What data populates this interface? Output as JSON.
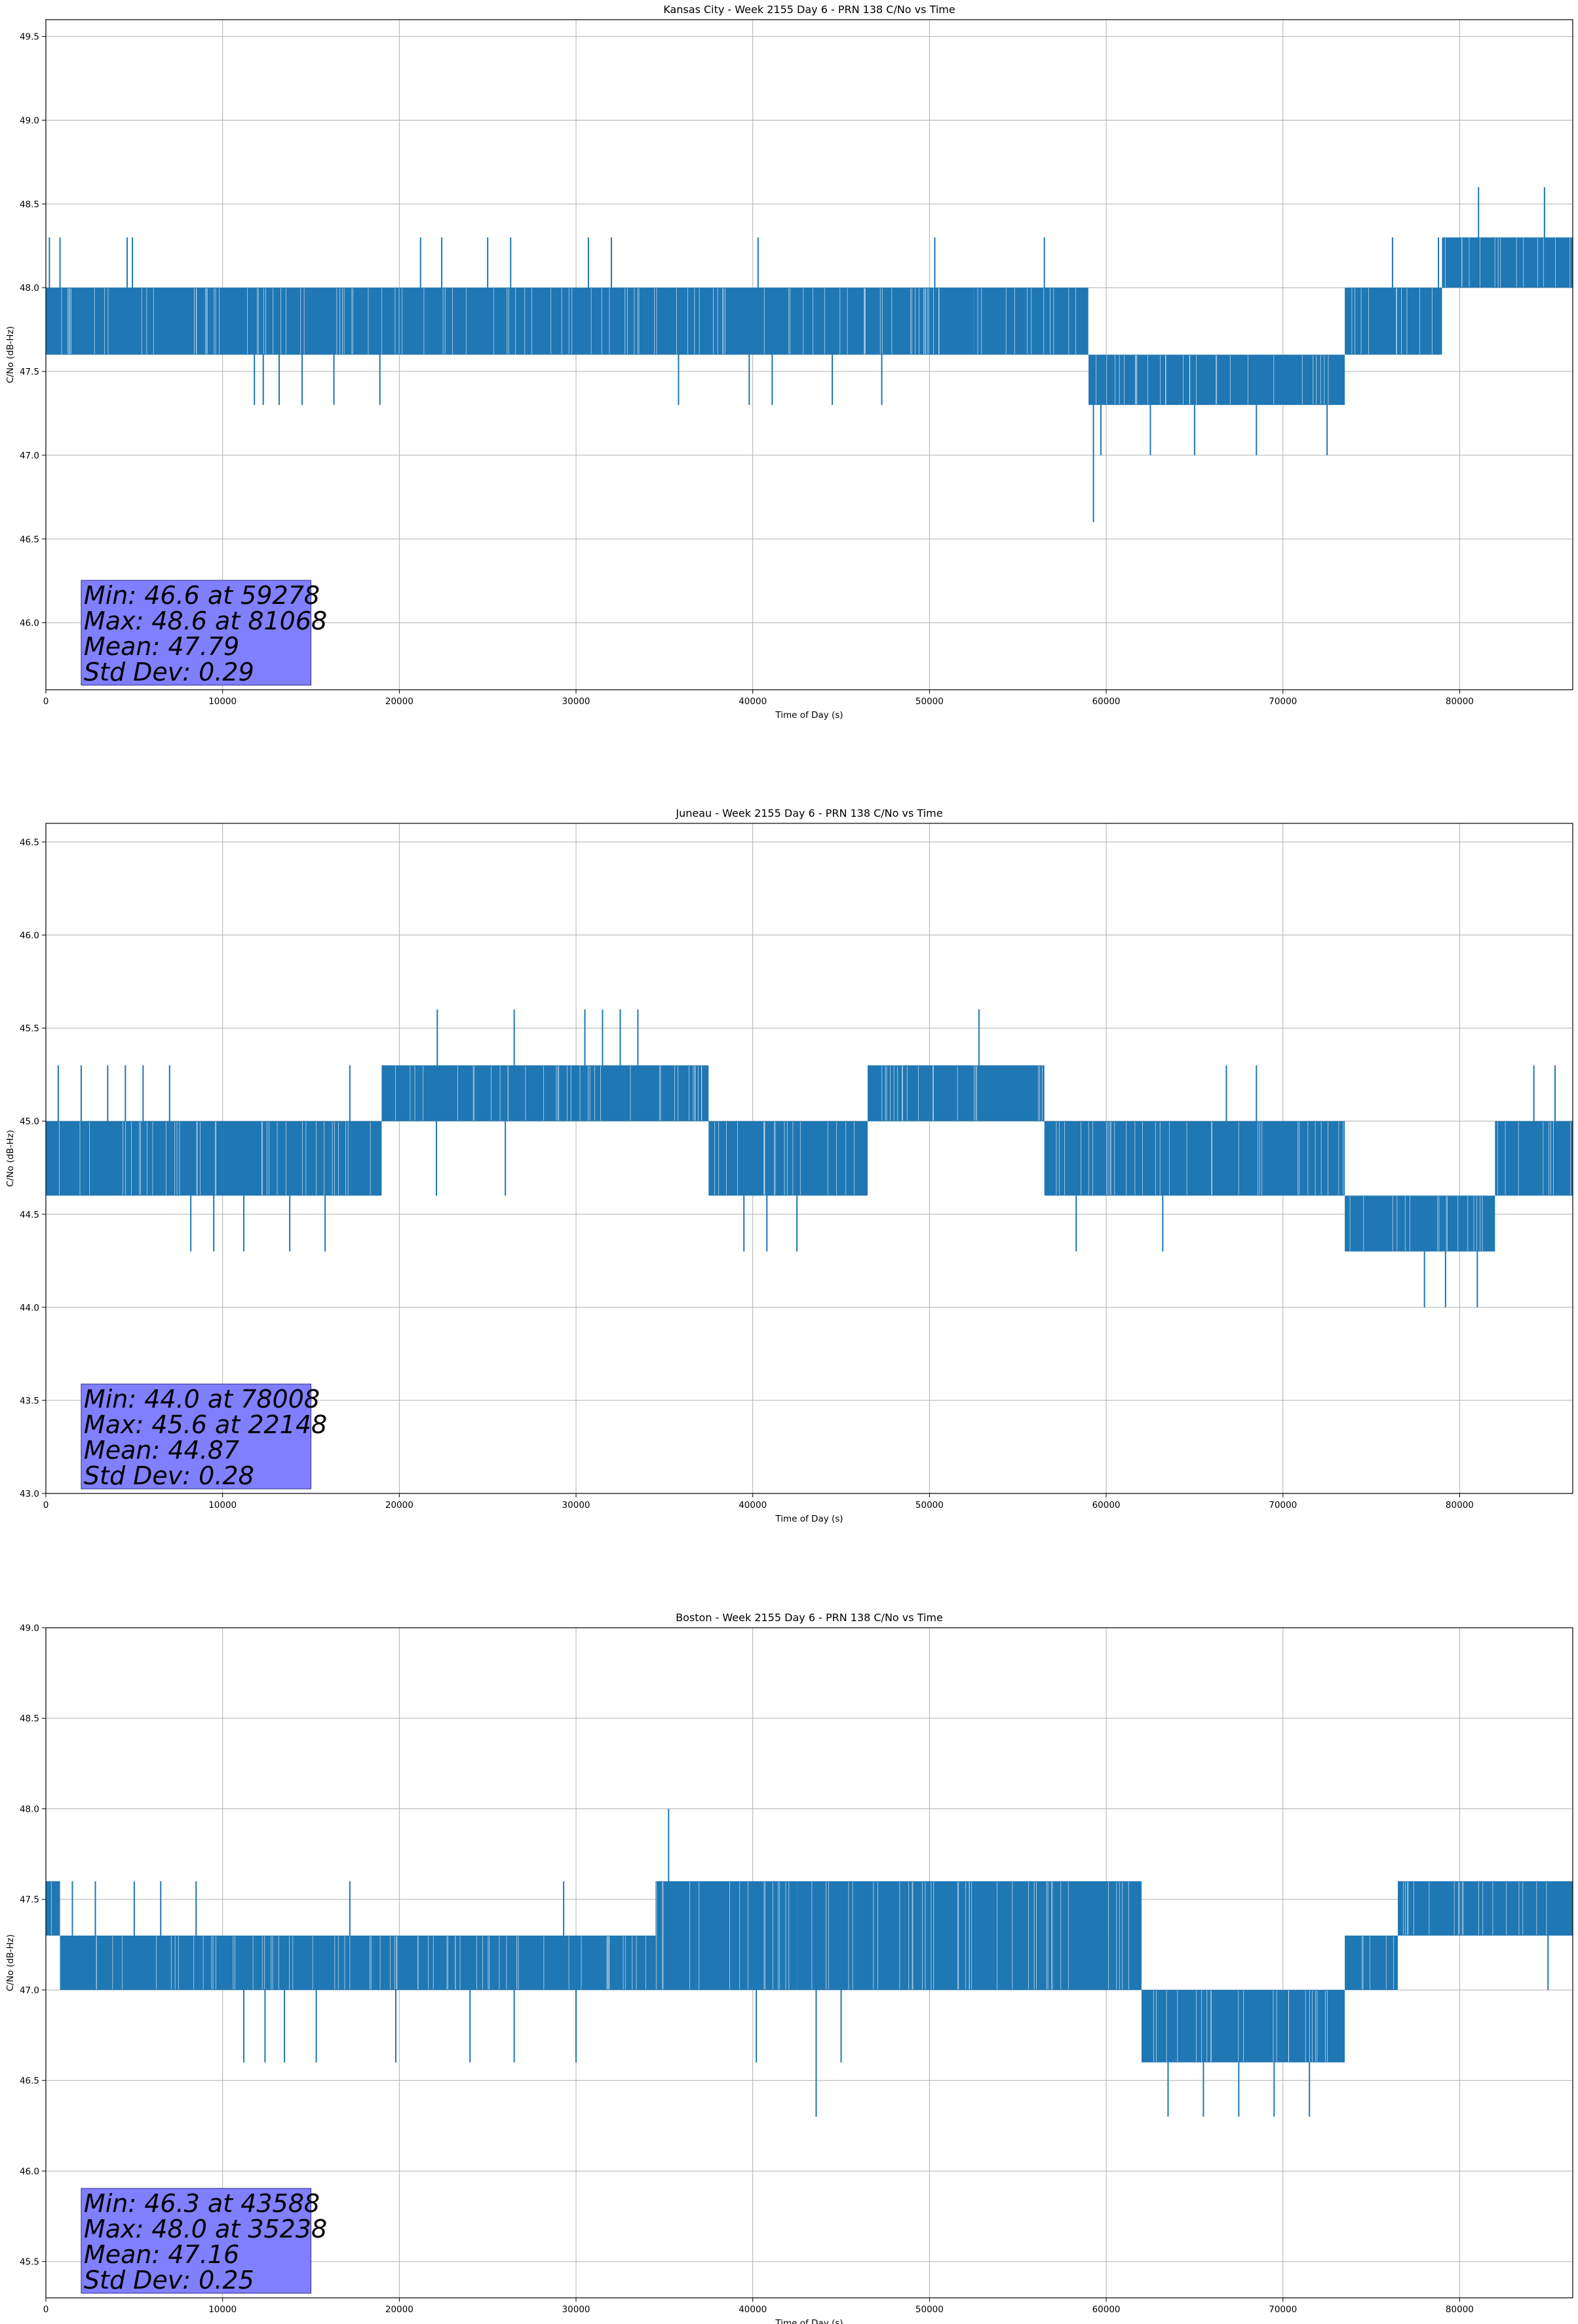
{
  "chart_data": [
    {
      "type": "line",
      "title": "Kansas City - Week 2155 Day 6 - PRN 138 C/No vs Time",
      "xlabel": "Time of Day (s)",
      "ylabel": "C/No (dB-Hz)",
      "xlim": [
        0,
        86400
      ],
      "ylim": [
        45.6,
        49.6
      ],
      "xticks": [
        0,
        10000,
        20000,
        30000,
        40000,
        50000,
        60000,
        70000,
        80000
      ],
      "yticks": [
        "46.0",
        "46.5",
        "47.0",
        "47.5",
        "48.0",
        "48.5",
        "49.0",
        "49.5"
      ],
      "grid": true,
      "color": "#1f77b4",
      "segments": [
        {
          "x": [
            0,
            52500
          ],
          "lo": 47.6,
          "hi": 48.0
        },
        {
          "x": [
            52500,
            59000
          ],
          "lo": 47.6,
          "hi": 48.0
        },
        {
          "x": [
            59000,
            73500
          ],
          "lo": 47.3,
          "hi": 47.6
        },
        {
          "x": [
            73500,
            79000
          ],
          "lo": 47.6,
          "hi": 48.0
        },
        {
          "x": [
            79000,
            86400
          ],
          "lo": 48.0,
          "hi": 48.3
        }
      ],
      "spikes": [
        {
          "x": 200,
          "y": 48.3
        },
        {
          "x": 800,
          "y": 48.3
        },
        {
          "x": 4600,
          "y": 48.3
        },
        {
          "x": 4900,
          "y": 48.3
        },
        {
          "x": 11800,
          "y": 47.3
        },
        {
          "x": 12300,
          "y": 47.3
        },
        {
          "x": 13200,
          "y": 47.3
        },
        {
          "x": 14500,
          "y": 47.3
        },
        {
          "x": 16300,
          "y": 47.3
        },
        {
          "x": 18900,
          "y": 47.3
        },
        {
          "x": 21200,
          "y": 48.3
        },
        {
          "x": 22400,
          "y": 48.3
        },
        {
          "x": 25000,
          "y": 48.3
        },
        {
          "x": 26300,
          "y": 48.3
        },
        {
          "x": 30700,
          "y": 48.3
        },
        {
          "x": 32000,
          "y": 48.3
        },
        {
          "x": 35800,
          "y": 47.3
        },
        {
          "x": 39800,
          "y": 47.3
        },
        {
          "x": 40300,
          "y": 48.3
        },
        {
          "x": 41100,
          "y": 47.3
        },
        {
          "x": 44500,
          "y": 47.3
        },
        {
          "x": 47300,
          "y": 47.3
        },
        {
          "x": 50300,
          "y": 48.3
        },
        {
          "x": 56500,
          "y": 48.3
        },
        {
          "x": 59278,
          "y": 46.6
        },
        {
          "x": 59700,
          "y": 47.0
        },
        {
          "x": 62500,
          "y": 47.0
        },
        {
          "x": 65000,
          "y": 47.0
        },
        {
          "x": 68500,
          "y": 47.0
        },
        {
          "x": 72500,
          "y": 47.0
        },
        {
          "x": 76200,
          "y": 48.3
        },
        {
          "x": 78800,
          "y": 48.3
        },
        {
          "x": 81068,
          "y": 48.6
        },
        {
          "x": 84800,
          "y": 48.6
        }
      ],
      "stats": [
        "Min: 46.6 at 59278",
        "Max: 48.6 at 81068",
        "Mean: 47.79",
        "Std Dev: 0.29"
      ]
    },
    {
      "type": "line",
      "title": "Juneau - Week 2155 Day 6 - PRN 138 C/No vs Time",
      "xlabel": "Time of Day (s)",
      "ylabel": "C/No (dB-Hz)",
      "xlim": [
        0,
        86400
      ],
      "ylim": [
        43.0,
        46.6
      ],
      "xticks": [
        0,
        10000,
        20000,
        30000,
        40000,
        50000,
        60000,
        70000,
        80000
      ],
      "yticks": [
        "43.0",
        "43.5",
        "44.0",
        "44.5",
        "45.0",
        "45.5",
        "46.0",
        "46.5"
      ],
      "grid": true,
      "color": "#1f77b4",
      "segments": [
        {
          "x": [
            0,
            19000
          ],
          "lo": 44.6,
          "hi": 45.0
        },
        {
          "x": [
            19000,
            37500
          ],
          "lo": 45.0,
          "hi": 45.3
        },
        {
          "x": [
            37500,
            46500
          ],
          "lo": 44.6,
          "hi": 45.0
        },
        {
          "x": [
            46500,
            56500
          ],
          "lo": 45.0,
          "hi": 45.3
        },
        {
          "x": [
            56500,
            73500
          ],
          "lo": 44.6,
          "hi": 45.0
        },
        {
          "x": [
            73500,
            82000
          ],
          "lo": 44.3,
          "hi": 44.6
        },
        {
          "x": [
            82000,
            86400
          ],
          "lo": 44.6,
          "hi": 45.0
        }
      ],
      "spikes": [
        {
          "x": 700,
          "y": 45.3
        },
        {
          "x": 2000,
          "y": 45.3
        },
        {
          "x": 3500,
          "y": 45.3
        },
        {
          "x": 4500,
          "y": 45.3
        },
        {
          "x": 5500,
          "y": 45.3
        },
        {
          "x": 7000,
          "y": 45.3
        },
        {
          "x": 8200,
          "y": 44.3
        },
        {
          "x": 9500,
          "y": 44.3
        },
        {
          "x": 11200,
          "y": 44.3
        },
        {
          "x": 13800,
          "y": 44.3
        },
        {
          "x": 15800,
          "y": 44.3
        },
        {
          "x": 17200,
          "y": 45.3
        },
        {
          "x": 22148,
          "y": 45.6
        },
        {
          "x": 26500,
          "y": 45.6
        },
        {
          "x": 30500,
          "y": 45.6
        },
        {
          "x": 31500,
          "y": 45.6
        },
        {
          "x": 32500,
          "y": 45.6
        },
        {
          "x": 33500,
          "y": 45.6
        },
        {
          "x": 22100,
          "y": 44.6
        },
        {
          "x": 26000,
          "y": 44.6
        },
        {
          "x": 39500,
          "y": 44.3
        },
        {
          "x": 40800,
          "y": 44.3
        },
        {
          "x": 42500,
          "y": 44.3
        },
        {
          "x": 52800,
          "y": 45.6
        },
        {
          "x": 58300,
          "y": 44.3
        },
        {
          "x": 63200,
          "y": 44.3
        },
        {
          "x": 66800,
          "y": 45.3
        },
        {
          "x": 68500,
          "y": 45.3
        },
        {
          "x": 78008,
          "y": 44.0
        },
        {
          "x": 79200,
          "y": 44.0
        },
        {
          "x": 81000,
          "y": 44.0
        },
        {
          "x": 84200,
          "y": 45.3
        },
        {
          "x": 85400,
          "y": 45.3
        }
      ],
      "stats": [
        "Min: 44.0 at 78008",
        "Max: 45.6 at 22148",
        "Mean: 44.87",
        "Std Dev: 0.28"
      ]
    },
    {
      "type": "line",
      "title": "Boston - Week 2155 Day 6 - PRN 138 C/No vs Time",
      "xlabel": "Time of Day (s)",
      "ylabel": "C/No (dB-Hz)",
      "xlim": [
        0,
        86400
      ],
      "ylim": [
        45.3,
        49.0
      ],
      "xticks": [
        0,
        10000,
        20000,
        30000,
        40000,
        50000,
        60000,
        70000,
        80000
      ],
      "yticks": [
        "45.5",
        "46.0",
        "46.5",
        "47.0",
        "47.5",
        "48.0",
        "48.5",
        "49.0"
      ],
      "grid": true,
      "color": "#1f77b4",
      "segments": [
        {
          "x": [
            0,
            800
          ],
          "lo": 47.3,
          "hi": 47.6
        },
        {
          "x": [
            800,
            34500
          ],
          "lo": 47.0,
          "hi": 47.3
        },
        {
          "x": [
            34500,
            42500
          ],
          "lo": 47.0,
          "hi": 47.6
        },
        {
          "x": [
            42500,
            62000
          ],
          "lo": 47.0,
          "hi": 47.6
        },
        {
          "x": [
            62000,
            73500
          ],
          "lo": 46.6,
          "hi": 47.0
        },
        {
          "x": [
            73500,
            76500
          ],
          "lo": 47.0,
          "hi": 47.3
        },
        {
          "x": [
            76500,
            86400
          ],
          "lo": 47.3,
          "hi": 47.6
        }
      ],
      "spikes": [
        {
          "x": 1500,
          "y": 47.6
        },
        {
          "x": 2800,
          "y": 47.6
        },
        {
          "x": 5000,
          "y": 47.6
        },
        {
          "x": 6500,
          "y": 47.6
        },
        {
          "x": 8500,
          "y": 47.6
        },
        {
          "x": 11200,
          "y": 46.6
        },
        {
          "x": 12400,
          "y": 46.6
        },
        {
          "x": 13500,
          "y": 46.6
        },
        {
          "x": 15300,
          "y": 46.6
        },
        {
          "x": 17200,
          "y": 47.6
        },
        {
          "x": 19800,
          "y": 46.6
        },
        {
          "x": 24000,
          "y": 46.6
        },
        {
          "x": 26500,
          "y": 46.6
        },
        {
          "x": 29300,
          "y": 47.6
        },
        {
          "x": 30000,
          "y": 46.6
        },
        {
          "x": 35238,
          "y": 48.0
        },
        {
          "x": 39200,
          "y": 47.6
        },
        {
          "x": 40200,
          "y": 46.6
        },
        {
          "x": 43588,
          "y": 46.3
        },
        {
          "x": 45000,
          "y": 46.6
        },
        {
          "x": 60000,
          "y": 47.3
        },
        {
          "x": 63500,
          "y": 46.3
        },
        {
          "x": 65500,
          "y": 46.3
        },
        {
          "x": 67500,
          "y": 46.3
        },
        {
          "x": 69500,
          "y": 46.3
        },
        {
          "x": 71500,
          "y": 46.3
        },
        {
          "x": 85000,
          "y": 47.0
        }
      ],
      "stats": [
        "Min: 46.3 at 43588",
        "Max: 48.0 at 35238",
        "Mean: 47.16",
        "Std Dev: 0.25"
      ]
    }
  ]
}
